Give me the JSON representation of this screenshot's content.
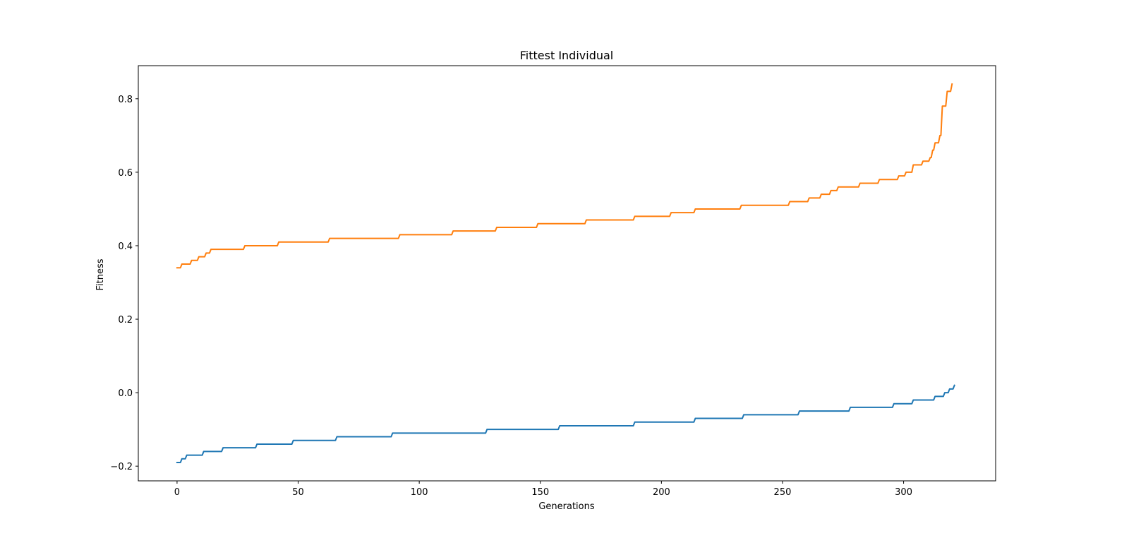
{
  "chart_data": {
    "type": "line",
    "title": "Fittest Individual",
    "xlabel": "Generations",
    "ylabel": "Fitness",
    "xlim": [
      -16,
      338
    ],
    "ylim": [
      -0.24,
      0.89
    ],
    "xticks": [
      0,
      50,
      100,
      150,
      200,
      250,
      300
    ],
    "xtick_labels": [
      "0",
      "50",
      "100",
      "150",
      "200",
      "250",
      "300"
    ],
    "yticks": [
      -0.2,
      0.0,
      0.2,
      0.4,
      0.6,
      0.8
    ],
    "ytick_labels": [
      "−0.2",
      "0.0",
      "0.2",
      "0.4",
      "0.6",
      "0.8"
    ],
    "grid": false,
    "legend": "none",
    "series": [
      {
        "color": "#1f77b4",
        "steps": [
          [
            0,
            -0.19
          ],
          [
            2,
            -0.18
          ],
          [
            4,
            -0.17
          ],
          [
            11,
            -0.16
          ],
          [
            19,
            -0.15
          ],
          [
            33,
            -0.14
          ],
          [
            48,
            -0.13
          ],
          [
            66,
            -0.12
          ],
          [
            89,
            -0.11
          ],
          [
            128,
            -0.1
          ],
          [
            158,
            -0.09
          ],
          [
            189,
            -0.08
          ],
          [
            214,
            -0.07
          ],
          [
            234,
            -0.06
          ],
          [
            257,
            -0.05
          ],
          [
            278,
            -0.04
          ],
          [
            296,
            -0.03
          ],
          [
            304,
            -0.02
          ],
          [
            313,
            -0.01
          ],
          [
            317,
            0.0
          ],
          [
            319,
            0.01
          ],
          [
            321,
            0.02
          ]
        ]
      },
      {
        "color": "#ff7f0e",
        "steps": [
          [
            0,
            0.34
          ],
          [
            2,
            0.35
          ],
          [
            6,
            0.36
          ],
          [
            9,
            0.37
          ],
          [
            12,
            0.38
          ],
          [
            14,
            0.39
          ],
          [
            28,
            0.4
          ],
          [
            42,
            0.41
          ],
          [
            63,
            0.42
          ],
          [
            92,
            0.43
          ],
          [
            114,
            0.44
          ],
          [
            132,
            0.45
          ],
          [
            149,
            0.46
          ],
          [
            169,
            0.47
          ],
          [
            189,
            0.48
          ],
          [
            204,
            0.49
          ],
          [
            214,
            0.5
          ],
          [
            233,
            0.51
          ],
          [
            253,
            0.52
          ],
          [
            261,
            0.53
          ],
          [
            266,
            0.54
          ],
          [
            270,
            0.55
          ],
          [
            273,
            0.56
          ],
          [
            282,
            0.57
          ],
          [
            290,
            0.58
          ],
          [
            298,
            0.59
          ],
          [
            301,
            0.6
          ],
          [
            304,
            0.62
          ],
          [
            308,
            0.63
          ],
          [
            311,
            0.64
          ],
          [
            312,
            0.66
          ],
          [
            313,
            0.68
          ],
          [
            315,
            0.7
          ],
          [
            316,
            0.78
          ],
          [
            318,
            0.82
          ],
          [
            320,
            0.84
          ]
        ]
      }
    ]
  }
}
